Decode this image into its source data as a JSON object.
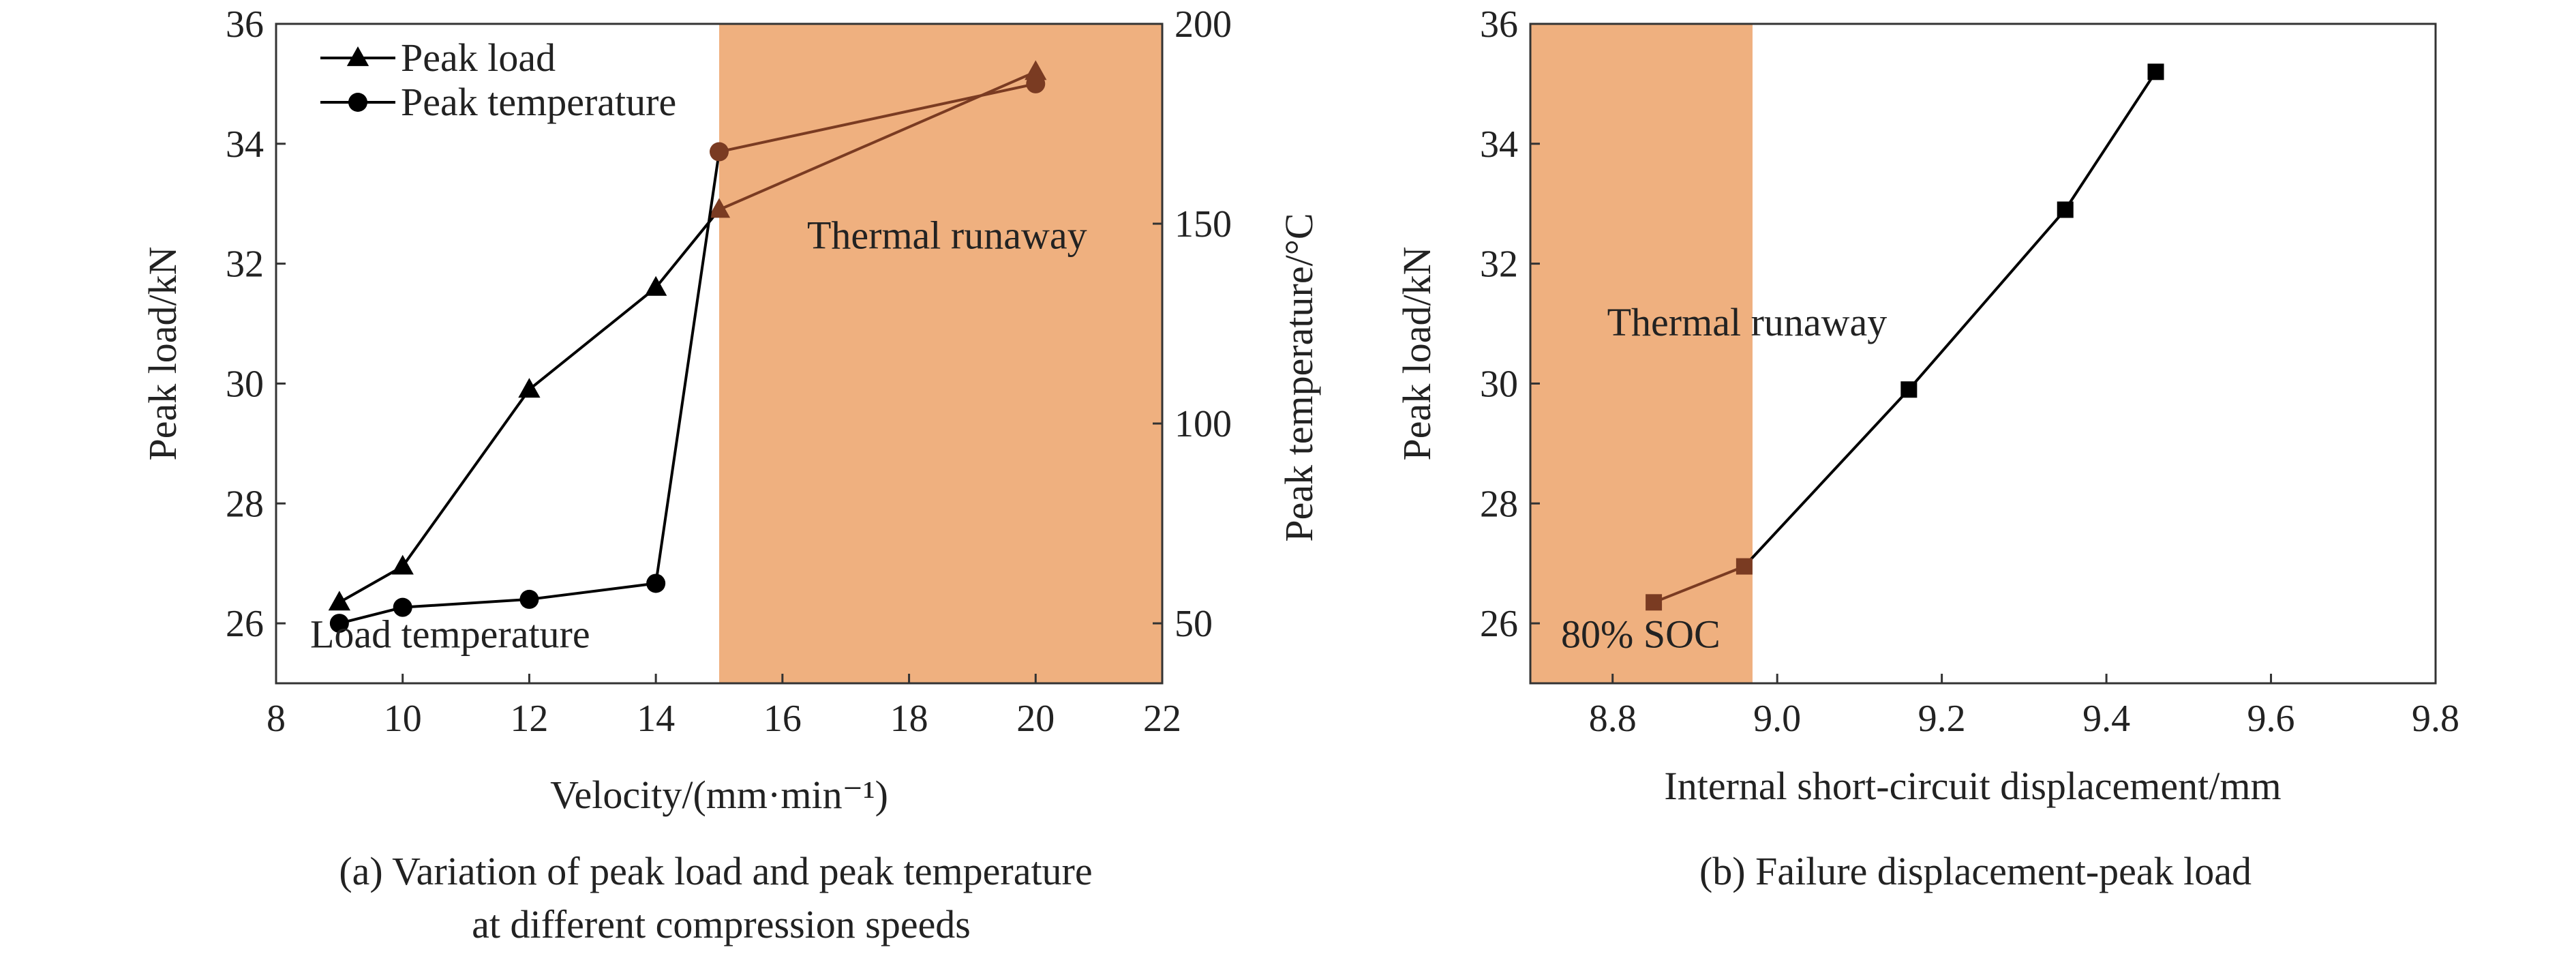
{
  "colors": {
    "shade": "#efb07f",
    "runaway_line": "#7a3b22",
    "ink": "#000000",
    "axis": "#333333"
  },
  "chart_data": [
    {
      "type": "line",
      "caption_lines": [
        "(a) Variation of peak load and peak temperature",
        "at different compression speeds"
      ],
      "xlabel": "Velocity/(mm·min⁻¹)",
      "ylabel": "Peak load/kN",
      "y2label": "Peak temperature/°C",
      "xlim": [
        8,
        22
      ],
      "ylim": [
        25,
        36
      ],
      "y2lim": [
        35,
        200
      ],
      "xticks": [
        "8",
        "10",
        "12",
        "14",
        "16",
        "18",
        "20",
        "22"
      ],
      "yticks": [
        "26",
        "28",
        "30",
        "32",
        "34",
        "36"
      ],
      "y2ticks": [
        "50",
        "100",
        "150",
        "200"
      ],
      "shaded_region": {
        "x": [
          15,
          22
        ],
        "label": "Thermal runaway"
      },
      "annotation": "Load temperature",
      "series": [
        {
          "name": "Peak load",
          "axis": "left",
          "marker": "triangle",
          "x": [
            9,
            10,
            12,
            14,
            15,
            20
          ],
          "values": [
            26.35,
            26.95,
            29.9,
            31.6,
            32.9,
            35.2
          ]
        },
        {
          "name": "Peak temperature",
          "axis": "right",
          "marker": "circle",
          "x": [
            9,
            10,
            12,
            14,
            15,
            20
          ],
          "values": [
            50,
            54,
            56,
            60,
            168,
            185
          ]
        }
      ]
    },
    {
      "type": "line",
      "caption_lines": [
        "(b) Failure displacement-peak load"
      ],
      "xlabel": "Internal short-circuit displacement/mm",
      "ylabel": "Peak load/kN",
      "xlim": [
        8.7,
        9.8
      ],
      "ylim": [
        25,
        36
      ],
      "xticks": [
        "8.8",
        "9.0",
        "9.2",
        "9.4",
        "9.6",
        "9.8"
      ],
      "yticks": [
        "26",
        "28",
        "30",
        "32",
        "34",
        "36"
      ],
      "shaded_region": {
        "x": [
          8.7,
          8.97
        ],
        "label": "Thermal runaway"
      },
      "annotation": "80% SOC",
      "series": [
        {
          "name": "Peak load",
          "marker": "square",
          "x": [
            8.85,
            8.96,
            9.16,
            9.35,
            9.46
          ],
          "values": [
            26.35,
            26.95,
            29.9,
            32.9,
            35.2
          ]
        }
      ]
    }
  ]
}
